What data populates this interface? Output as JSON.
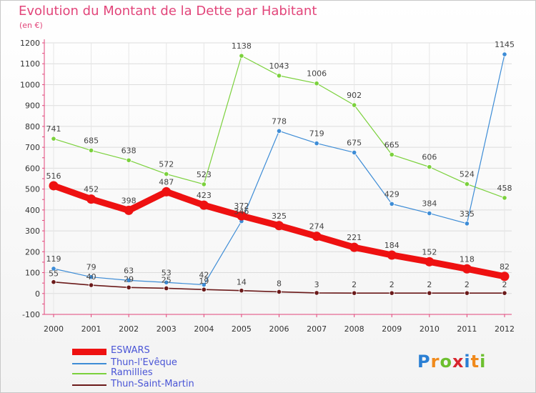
{
  "header": {
    "title": "Evolution du Montant de la Dette par Habitant",
    "unit": "(en €)"
  },
  "logo": {
    "text": "Proxiti"
  },
  "chart_data": {
    "type": "line",
    "title": "Evolution du Montant de la Dette par Habitant",
    "ylabel": "(en €)",
    "xlabel": "",
    "ylim": [
      -100,
      1200
    ],
    "yticks": [
      -100,
      0,
      100,
      200,
      300,
      400,
      500,
      600,
      700,
      800,
      900,
      1000,
      1100,
      1200
    ],
    "grid": true,
    "legend_position": "bottom-left",
    "x": [
      "2000",
      "2001",
      "2002",
      "2003",
      "2004",
      "2005",
      "2006",
      "2007",
      "2008",
      "2009",
      "2010",
      "2011",
      "2012"
    ],
    "series": [
      {
        "name": "ESWARS",
        "color": "#ee1111",
        "values": [
          516,
          452,
          398,
          487,
          423,
          372,
          325,
          274,
          221,
          184,
          152,
          118,
          82
        ]
      },
      {
        "name": "Thun-l'Evêque",
        "color": "#3d8cd6",
        "values": [
          119,
          79,
          63,
          53,
          42,
          346,
          778,
          719,
          675,
          429,
          384,
          335,
          1145
        ]
      },
      {
        "name": "Ramillies",
        "color": "#7bd13c",
        "values": [
          741,
          685,
          638,
          572,
          523,
          1138,
          1043,
          1006,
          902,
          665,
          606,
          524,
          458
        ]
      },
      {
        "name": "Thun-Saint-Martin",
        "color": "#6b1a1a",
        "values": [
          55,
          40,
          29,
          25,
          19,
          14,
          8,
          3,
          2,
          2,
          2,
          2,
          2
        ]
      }
    ]
  }
}
